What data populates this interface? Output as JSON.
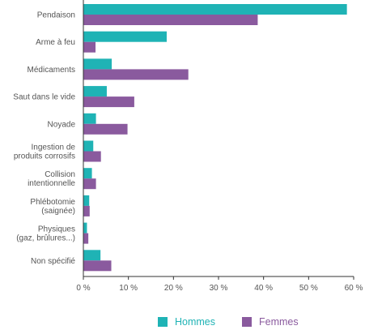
{
  "chart_data": {
    "type": "bar",
    "orientation": "horizontal",
    "categories": [
      [
        "Pendaison"
      ],
      [
        "Arme à feu"
      ],
      [
        "Médicaments"
      ],
      [
        "Saut dans le vide"
      ],
      [
        "Noyade"
      ],
      [
        "Ingestion de",
        "produits corrosifs"
      ],
      [
        "Collision",
        "intentionnelle"
      ],
      [
        "Phlébotomie",
        "(saignée)"
      ],
      [
        "Physiques",
        "(gaz, brûlures...)"
      ],
      [
        "Non spécifié"
      ]
    ],
    "series": [
      {
        "name": "Hommes",
        "color": "#1fb3b5",
        "values": [
          58.5,
          18.5,
          6.3,
          5.2,
          2.8,
          2.2,
          1.9,
          1.3,
          0.8,
          3.8
        ]
      },
      {
        "name": "Femmes",
        "color": "#8a5a9e",
        "values": [
          38.7,
          2.7,
          23.3,
          11.3,
          9.8,
          3.9,
          2.8,
          1.4,
          1.1,
          6.2
        ]
      }
    ],
    "xlim": [
      0,
      60
    ],
    "xticks": [
      "0 %",
      "10 %",
      "20 %",
      "30 %",
      "40 %",
      "50 %",
      "60 %"
    ],
    "legend_position": "bottom",
    "grid": false
  },
  "legend": {
    "hommes_label": "Hommes",
    "femmes_label": "Femmes"
  }
}
